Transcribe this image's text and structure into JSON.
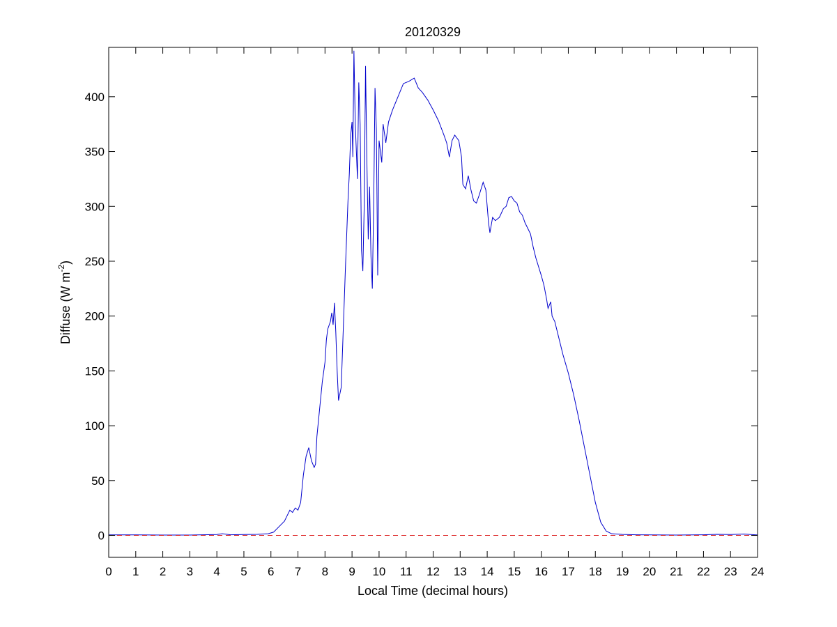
{
  "chart_data": {
    "type": "line",
    "title": "20120329",
    "xlabel": "Local Time (decimal hours)",
    "ylabel": {
      "prefix": "Diffuse (W m",
      "sup": "-2",
      "suffix": ")"
    },
    "xlim": [
      0,
      24
    ],
    "ylim": [
      -20,
      445
    ],
    "xticks": [
      0,
      1,
      2,
      3,
      4,
      5,
      6,
      7,
      8,
      9,
      10,
      11,
      12,
      13,
      14,
      15,
      16,
      17,
      18,
      19,
      20,
      21,
      22,
      23,
      24
    ],
    "yticks": [
      0,
      50,
      100,
      150,
      200,
      250,
      300,
      350,
      400
    ],
    "grid": false,
    "series": [
      {
        "color": "#0000cc",
        "style": "solid",
        "points": [
          [
            0,
            0.5
          ],
          [
            1,
            0.5
          ],
          [
            2,
            0.3
          ],
          [
            3,
            0.3
          ],
          [
            4,
            0.8
          ],
          [
            4.2,
            1.5
          ],
          [
            4.5,
            0.6
          ],
          [
            5,
            0.8
          ],
          [
            5.5,
            1
          ],
          [
            5.9,
            1.5
          ],
          [
            6.1,
            3
          ],
          [
            6.3,
            8
          ],
          [
            6.5,
            13
          ],
          [
            6.6,
            18
          ],
          [
            6.7,
            23
          ],
          [
            6.8,
            21
          ],
          [
            6.9,
            25
          ],
          [
            7,
            23
          ],
          [
            7.1,
            30
          ],
          [
            7.2,
            55
          ],
          [
            7.3,
            72
          ],
          [
            7.4,
            80
          ],
          [
            7.5,
            68
          ],
          [
            7.6,
            62
          ],
          [
            7.65,
            65
          ],
          [
            7.7,
            90
          ],
          [
            7.8,
            115
          ],
          [
            7.9,
            140
          ],
          [
            8,
            158
          ],
          [
            8.05,
            178
          ],
          [
            8.1,
            188
          ],
          [
            8.2,
            195
          ],
          [
            8.25,
            203
          ],
          [
            8.3,
            192
          ],
          [
            8.35,
            212
          ],
          [
            8.4,
            185
          ],
          [
            8.45,
            150
          ],
          [
            8.5,
            123
          ],
          [
            8.6,
            135
          ],
          [
            8.65,
            170
          ],
          [
            8.75,
            240
          ],
          [
            8.85,
            305
          ],
          [
            8.9,
            330
          ],
          [
            8.95,
            365
          ],
          [
            9,
            377
          ],
          [
            9.03,
            345
          ],
          [
            9.07,
            442
          ],
          [
            9.12,
            375
          ],
          [
            9.2,
            325
          ],
          [
            9.25,
            413
          ],
          [
            9.3,
            375
          ],
          [
            9.35,
            260
          ],
          [
            9.4,
            241
          ],
          [
            9.45,
            300
          ],
          [
            9.5,
            428
          ],
          [
            9.55,
            340
          ],
          [
            9.6,
            270
          ],
          [
            9.65,
            318
          ],
          [
            9.7,
            255
          ],
          [
            9.75,
            225
          ],
          [
            9.8,
            300
          ],
          [
            9.85,
            408
          ],
          [
            9.9,
            370
          ],
          [
            9.95,
            237
          ],
          [
            10,
            360
          ],
          [
            10.1,
            340
          ],
          [
            10.15,
            375
          ],
          [
            10.25,
            358
          ],
          [
            10.35,
            377
          ],
          [
            10.5,
            388
          ],
          [
            10.7,
            400
          ],
          [
            10.9,
            412
          ],
          [
            11.1,
            414
          ],
          [
            11.3,
            417
          ],
          [
            11.45,
            408
          ],
          [
            11.6,
            404
          ],
          [
            11.8,
            397
          ],
          [
            12,
            388
          ],
          [
            12.2,
            378
          ],
          [
            12.4,
            365
          ],
          [
            12.5,
            358
          ],
          [
            12.6,
            345
          ],
          [
            12.7,
            360
          ],
          [
            12.8,
            365
          ],
          [
            12.95,
            360
          ],
          [
            13.05,
            345
          ],
          [
            13.1,
            320
          ],
          [
            13.2,
            316
          ],
          [
            13.3,
            328
          ],
          [
            13.4,
            315
          ],
          [
            13.5,
            305
          ],
          [
            13.6,
            303
          ],
          [
            13.7,
            310
          ],
          [
            13.85,
            322
          ],
          [
            13.95,
            315
          ],
          [
            14,
            300
          ],
          [
            14.05,
            285
          ],
          [
            14.1,
            276
          ],
          [
            14.2,
            290
          ],
          [
            14.3,
            287
          ],
          [
            14.45,
            290
          ],
          [
            14.6,
            298
          ],
          [
            14.7,
            300
          ],
          [
            14.8,
            308
          ],
          [
            14.9,
            309
          ],
          [
            15,
            305
          ],
          [
            15.1,
            303
          ],
          [
            15.2,
            295
          ],
          [
            15.3,
            292
          ],
          [
            15.4,
            285
          ],
          [
            15.5,
            280
          ],
          [
            15.6,
            275
          ],
          [
            15.7,
            263
          ],
          [
            15.8,
            253
          ],
          [
            15.9,
            245
          ],
          [
            16,
            237
          ],
          [
            16.1,
            228
          ],
          [
            16.2,
            215
          ],
          [
            16.25,
            207
          ],
          [
            16.35,
            213
          ],
          [
            16.4,
            200
          ],
          [
            16.5,
            195
          ],
          [
            16.6,
            185
          ],
          [
            16.7,
            175
          ],
          [
            16.8,
            165
          ],
          [
            17,
            148
          ],
          [
            17.2,
            128
          ],
          [
            17.4,
            105
          ],
          [
            17.6,
            80
          ],
          [
            17.8,
            55
          ],
          [
            18,
            30
          ],
          [
            18.2,
            12
          ],
          [
            18.4,
            4
          ],
          [
            18.6,
            1.5
          ],
          [
            18.8,
            1.2
          ],
          [
            19,
            0.9
          ],
          [
            19.5,
            0.6
          ],
          [
            20,
            0.5
          ],
          [
            21,
            0.3
          ],
          [
            22,
            0.6
          ],
          [
            22.5,
            1
          ],
          [
            23,
            0.8
          ],
          [
            23.5,
            1.2
          ],
          [
            24,
            0.4
          ]
        ]
      },
      {
        "color": "#dd2222",
        "style": "dashed",
        "points": [
          [
            0,
            0
          ],
          [
            24,
            0
          ]
        ]
      }
    ]
  }
}
